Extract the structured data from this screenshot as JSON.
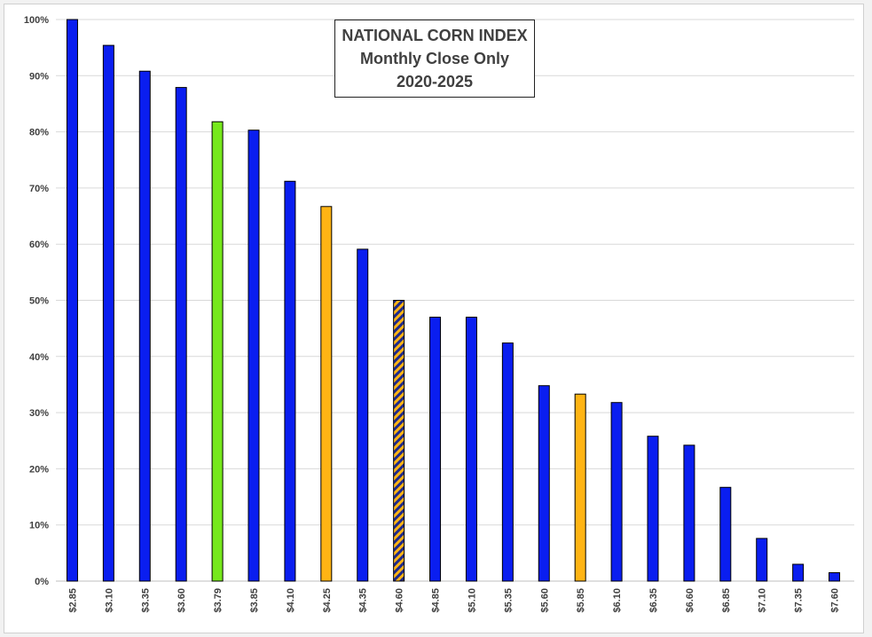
{
  "chart_data": {
    "type": "bar",
    "title_lines": [
      "NATIONAL CORN INDEX",
      "Monthly Close Only",
      "2020-2025"
    ],
    "xlabel": "",
    "ylabel": "",
    "ylim": [
      0,
      100
    ],
    "y_ticks": [
      0,
      10,
      20,
      30,
      40,
      50,
      60,
      70,
      80,
      90,
      100
    ],
    "y_tick_format": "percent",
    "grid": true,
    "categories": [
      "$2.85",
      "$3.10",
      "$3.35",
      "$3.60",
      "$3.79",
      "$3.85",
      "$4.10",
      "$4.25",
      "$4.35",
      "$4.60",
      "$4.85",
      "$5.10",
      "$5.35",
      "$5.60",
      "$5.85",
      "$6.10",
      "$6.35",
      "$6.60",
      "$6.85",
      "$7.10",
      "$7.35",
      "$7.60"
    ],
    "values": [
      100,
      95.4,
      90.8,
      87.9,
      81.8,
      80.3,
      71.2,
      66.7,
      59.1,
      50.0,
      47.0,
      47.0,
      42.4,
      34.8,
      33.3,
      31.8,
      25.8,
      24.2,
      16.7,
      7.6,
      3.0,
      1.5
    ],
    "bar_styles": [
      "blue",
      "blue",
      "blue",
      "blue",
      "green",
      "blue",
      "blue",
      "orange",
      "blue",
      "striped",
      "blue",
      "blue",
      "blue",
      "blue",
      "orange",
      "blue",
      "blue",
      "blue",
      "blue",
      "blue",
      "blue",
      "blue"
    ],
    "colors": {
      "blue": "#0a1ef0",
      "green": "#76e81c",
      "orange": "#ffb414",
      "stripe_dark": "#1f2a8a",
      "grid": "#d9d9d9",
      "axis": "#bfbfbf"
    }
  }
}
